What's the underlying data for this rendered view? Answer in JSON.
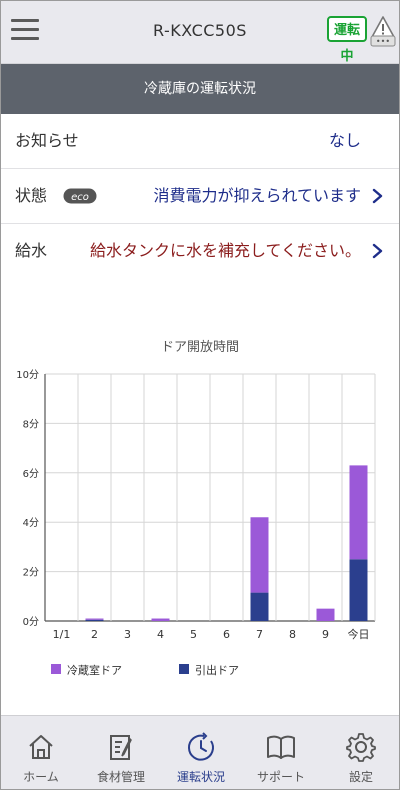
{
  "header": {
    "title": "R-KXCC50S",
    "status_badge": "運転中",
    "warning_badge": "•••"
  },
  "section_title": "冷蔵庫の運転状況",
  "info_rows": [
    {
      "label": "お知らせ",
      "value": "なし"
    },
    {
      "label": "状態",
      "badge": "eco",
      "value": "消費電力が抑えられています"
    },
    {
      "label": "給水",
      "value": "給水タンクに水を補充してください。"
    }
  ],
  "chart_data": {
    "type": "bar",
    "stacked": true,
    "title": "ドア開放時間",
    "categories": [
      "1/1",
      "2",
      "3",
      "4",
      "5",
      "6",
      "7",
      "8",
      "9",
      "今日"
    ],
    "y_ticks": [
      "0分",
      "2分",
      "4分",
      "6分",
      "8分",
      "10分"
    ],
    "ylim": [
      0,
      10
    ],
    "grid": true,
    "legend_position": "bottom",
    "series": [
      {
        "name": "引出ドア",
        "color": "#2b3f8e",
        "values": [
          0,
          0.05,
          0,
          0,
          0,
          0,
          1.15,
          0,
          0,
          2.5
        ]
      },
      {
        "name": "冷蔵室ドア",
        "color": "#9b59d8",
        "values": [
          0,
          0.05,
          0,
          0.1,
          0,
          0,
          3.05,
          0,
          0.5,
          3.8
        ]
      }
    ]
  },
  "nav": {
    "items": [
      {
        "label": "ホーム",
        "icon": "home-icon"
      },
      {
        "label": "食材管理",
        "icon": "food-management-icon"
      },
      {
        "label": "運転状況",
        "icon": "operation-status-icon",
        "active": true
      },
      {
        "label": "サポート",
        "icon": "book-icon"
      },
      {
        "label": "設定",
        "icon": "gear-icon"
      }
    ]
  },
  "colors": {
    "accent": "#2a3e8c",
    "status_green": "#1aa334",
    "warning_text": "#8b1d1d",
    "header_bar": "#5d636c"
  }
}
